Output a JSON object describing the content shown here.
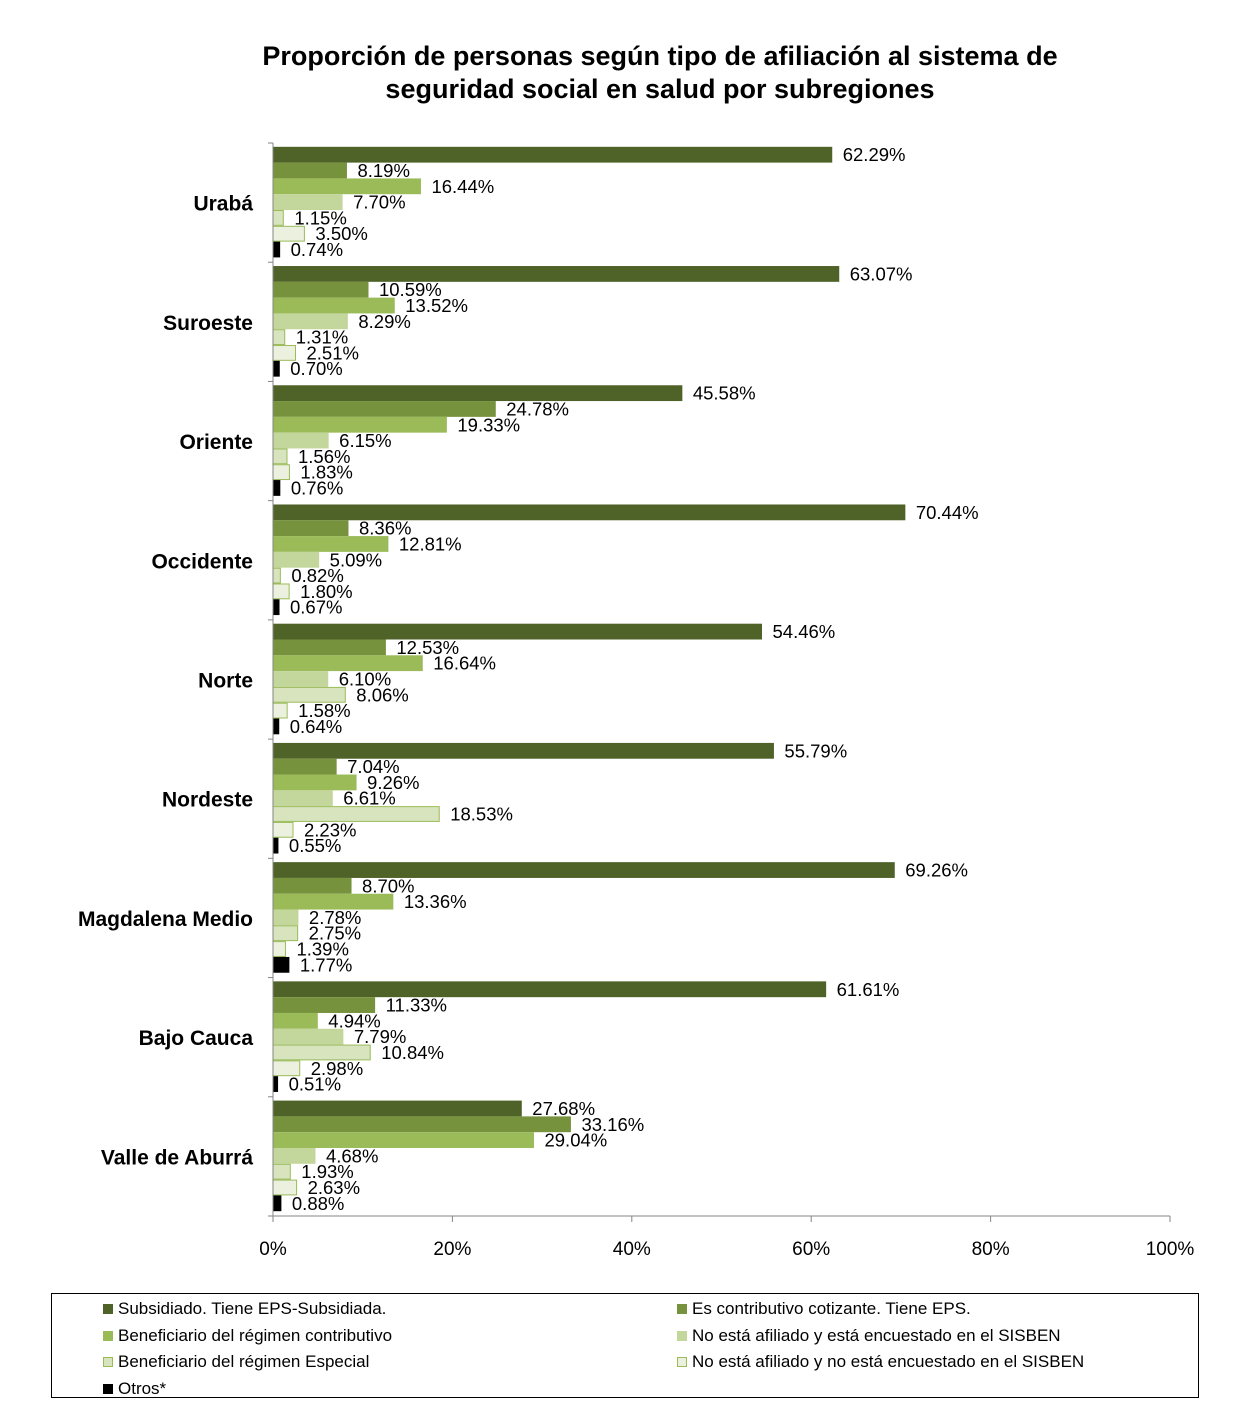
{
  "chart_data": {
    "type": "bar",
    "orientation": "horizontal",
    "title": [
      "Proporción de personas según tipo de afiliación al sistema de",
      "seguridad social en salud por subregiones"
    ],
    "categories": [
      "Urabá",
      "Suroeste",
      "Oriente",
      "Occidente",
      "Norte",
      "Nordeste",
      "Magdalena Medio",
      "Bajo Cauca",
      "Valle de Aburrá"
    ],
    "x_ticks": [
      "0%",
      "20%",
      "40%",
      "60%",
      "80%",
      "100%"
    ],
    "xlim": [
      0,
      100
    ],
    "grid": false,
    "legend_position": "bottom",
    "series": [
      {
        "name": "Subsidiado. Tiene EPS-Subsidiada.",
        "color": "#4f6228",
        "border": "#4f6228",
        "values": [
          62.29,
          63.07,
          45.58,
          70.44,
          54.46,
          55.79,
          69.26,
          61.61,
          27.68
        ],
        "labels": [
          "62.29%",
          "63.07%",
          "45.58%",
          "70.44%",
          "54.46%",
          "55.79%",
          "69.26%",
          "61.61%",
          "27.68%"
        ]
      },
      {
        "name": "Es contributivo cotizante. Tiene EPS.",
        "color": "#76923c",
        "border": "#76923c",
        "values": [
          8.19,
          10.59,
          24.78,
          8.36,
          12.53,
          7.04,
          8.7,
          11.33,
          33.16
        ],
        "labels": [
          "8.19%",
          "10.59%",
          "24.78%",
          "8.36%",
          "12.53%",
          "7.04%",
          "8.70%",
          "11.33%",
          "33.16%"
        ]
      },
      {
        "name": "Beneficiario del régimen contributivo",
        "color": "#9bbb59",
        "border": "#9bbb59",
        "values": [
          16.44,
          13.52,
          19.33,
          12.81,
          16.64,
          9.26,
          13.36,
          4.94,
          29.04
        ],
        "labels": [
          "16.44%",
          "13.52%",
          "19.33%",
          "12.81%",
          "16.64%",
          "9.26%",
          "13.36%",
          "4.94%",
          "29.04%"
        ]
      },
      {
        "name": "No está afiliado y está encuestado en el SISBEN",
        "color": "#c3d69b",
        "border": "#c3d69b",
        "values": [
          7.7,
          8.29,
          6.15,
          5.09,
          6.1,
          6.61,
          2.78,
          7.79,
          4.68
        ],
        "labels": [
          "7.70%",
          "8.29%",
          "6.15%",
          "5.09%",
          "6.10%",
          "6.61%",
          "2.78%",
          "7.79%",
          "4.68%"
        ]
      },
      {
        "name": "Beneficiario del régimen Especial",
        "color": "#d7e4bd",
        "border": "#9bbb59",
        "values": [
          1.15,
          1.31,
          1.56,
          0.82,
          8.06,
          18.53,
          2.75,
          10.84,
          1.93
        ],
        "labels": [
          "1.15%",
          "1.31%",
          "1.56%",
          "0.82%",
          "8.06%",
          "18.53%",
          "2.75%",
          "10.84%",
          "1.93%"
        ]
      },
      {
        "name": "No está afiliado y no está encuestado en el SISBEN",
        "color": "#ebf1de",
        "border": "#9bbb59",
        "values": [
          3.5,
          2.51,
          1.83,
          1.8,
          1.58,
          2.23,
          1.39,
          2.98,
          2.63
        ],
        "labels": [
          "3.50%",
          "2.51%",
          "1.83%",
          "1.80%",
          "1.58%",
          "2.23%",
          "1.39%",
          "2.98%",
          "2.63%"
        ]
      },
      {
        "name": "Otros*",
        "color": "#000000",
        "border": "#000000",
        "values": [
          0.74,
          0.7,
          0.76,
          0.67,
          0.64,
          0.55,
          1.77,
          0.51,
          0.88
        ],
        "labels": [
          "0.74%",
          "0.70%",
          "0.76%",
          "0.67%",
          "0.64%",
          "0.55%",
          "1.77%",
          "0.51%",
          "0.88%"
        ]
      }
    ]
  }
}
